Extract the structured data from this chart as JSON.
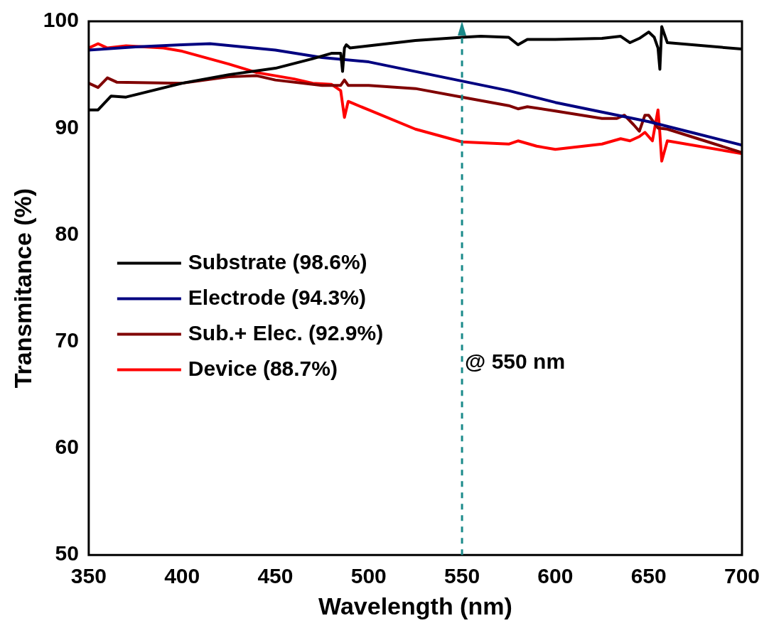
{
  "chart_data": {
    "type": "line",
    "xlabel": "Wavelength (nm)",
    "ylabel": "Transmitance (%)",
    "xlim": [
      350,
      700
    ],
    "xticks": [
      350,
      400,
      450,
      500,
      550,
      600,
      650,
      700
    ],
    "ylim": [
      50,
      100
    ],
    "yticks": [
      50,
      60,
      70,
      80,
      90,
      100
    ],
    "grid": false,
    "legend": "center left",
    "marker": "none",
    "line_style": "solid",
    "series": [
      {
        "name": "Substrate (98.6%)",
        "color": "#000000",
        "x": [
          350,
          355,
          362,
          370,
          400,
          425,
          450,
          470,
          480,
          485,
          486,
          487,
          488,
          490,
          500,
          525,
          550,
          560,
          575,
          580,
          585,
          600,
          625,
          635,
          640,
          645,
          650,
          653,
          655,
          656,
          657,
          660,
          700
        ],
        "values": [
          91.7,
          91.7,
          93.0,
          92.9,
          94.2,
          95.0,
          95.6,
          96.5,
          97.0,
          97.0,
          95.3,
          97.5,
          97.8,
          97.5,
          97.7,
          98.2,
          98.5,
          98.6,
          98.5,
          97.8,
          98.3,
          98.3,
          98.4,
          98.6,
          98.0,
          98.4,
          99.0,
          98.5,
          97.5,
          95.5,
          99.5,
          98.0,
          97.4
        ]
      },
      {
        "name": "Electrode (94.3%)",
        "color": "#000080",
        "x": [
          350,
          375,
          400,
          415,
          450,
          475,
          500,
          525,
          550,
          575,
          600,
          625,
          650,
          675,
          700
        ],
        "values": [
          97.3,
          97.6,
          97.8,
          97.9,
          97.3,
          96.6,
          96.2,
          95.3,
          94.4,
          93.5,
          92.4,
          91.5,
          90.6,
          89.5,
          88.4
        ]
      },
      {
        "name": "Sub.+ Elec. (92.9%)",
        "color": "#800000",
        "x": [
          350,
          355,
          360,
          365,
          400,
          425,
          440,
          450,
          475,
          485,
          487,
          489,
          500,
          525,
          550,
          575,
          580,
          585,
          600,
          625,
          633,
          637,
          642,
          645,
          648,
          650,
          655,
          660,
          680,
          700
        ],
        "values": [
          94.2,
          93.8,
          94.7,
          94.3,
          94.2,
          94.8,
          94.9,
          94.5,
          94.0,
          94.0,
          94.5,
          94.0,
          94.0,
          93.7,
          92.9,
          92.1,
          91.8,
          92.0,
          91.6,
          90.9,
          90.9,
          91.2,
          90.3,
          89.7,
          91.2,
          91.2,
          90.0,
          89.9,
          88.8,
          87.7
        ]
      },
      {
        "name": "Device (88.7%)",
        "color": "#ff0000",
        "x": [
          350,
          355,
          360,
          370,
          390,
          400,
          425,
          440,
          460,
          470,
          480,
          485,
          487,
          489,
          500,
          525,
          550,
          575,
          580,
          590,
          600,
          625,
          635,
          640,
          645,
          648,
          652,
          655,
          656,
          657,
          660,
          700
        ],
        "values": [
          97.5,
          97.9,
          97.5,
          97.7,
          97.5,
          97.2,
          96.0,
          95.2,
          94.6,
          94.2,
          94.1,
          93.5,
          91.0,
          92.5,
          91.7,
          89.9,
          88.7,
          88.5,
          88.8,
          88.3,
          88.0,
          88.5,
          89.0,
          88.8,
          89.2,
          89.6,
          88.8,
          91.7,
          89.5,
          86.9,
          88.8,
          87.6
        ]
      }
    ],
    "ref_lines": [
      {
        "axis": "x",
        "value": 550,
        "color": "#1a8a8a",
        "line_style": "dashed"
      }
    ],
    "annotations": [
      "@ 550 nm"
    ]
  }
}
